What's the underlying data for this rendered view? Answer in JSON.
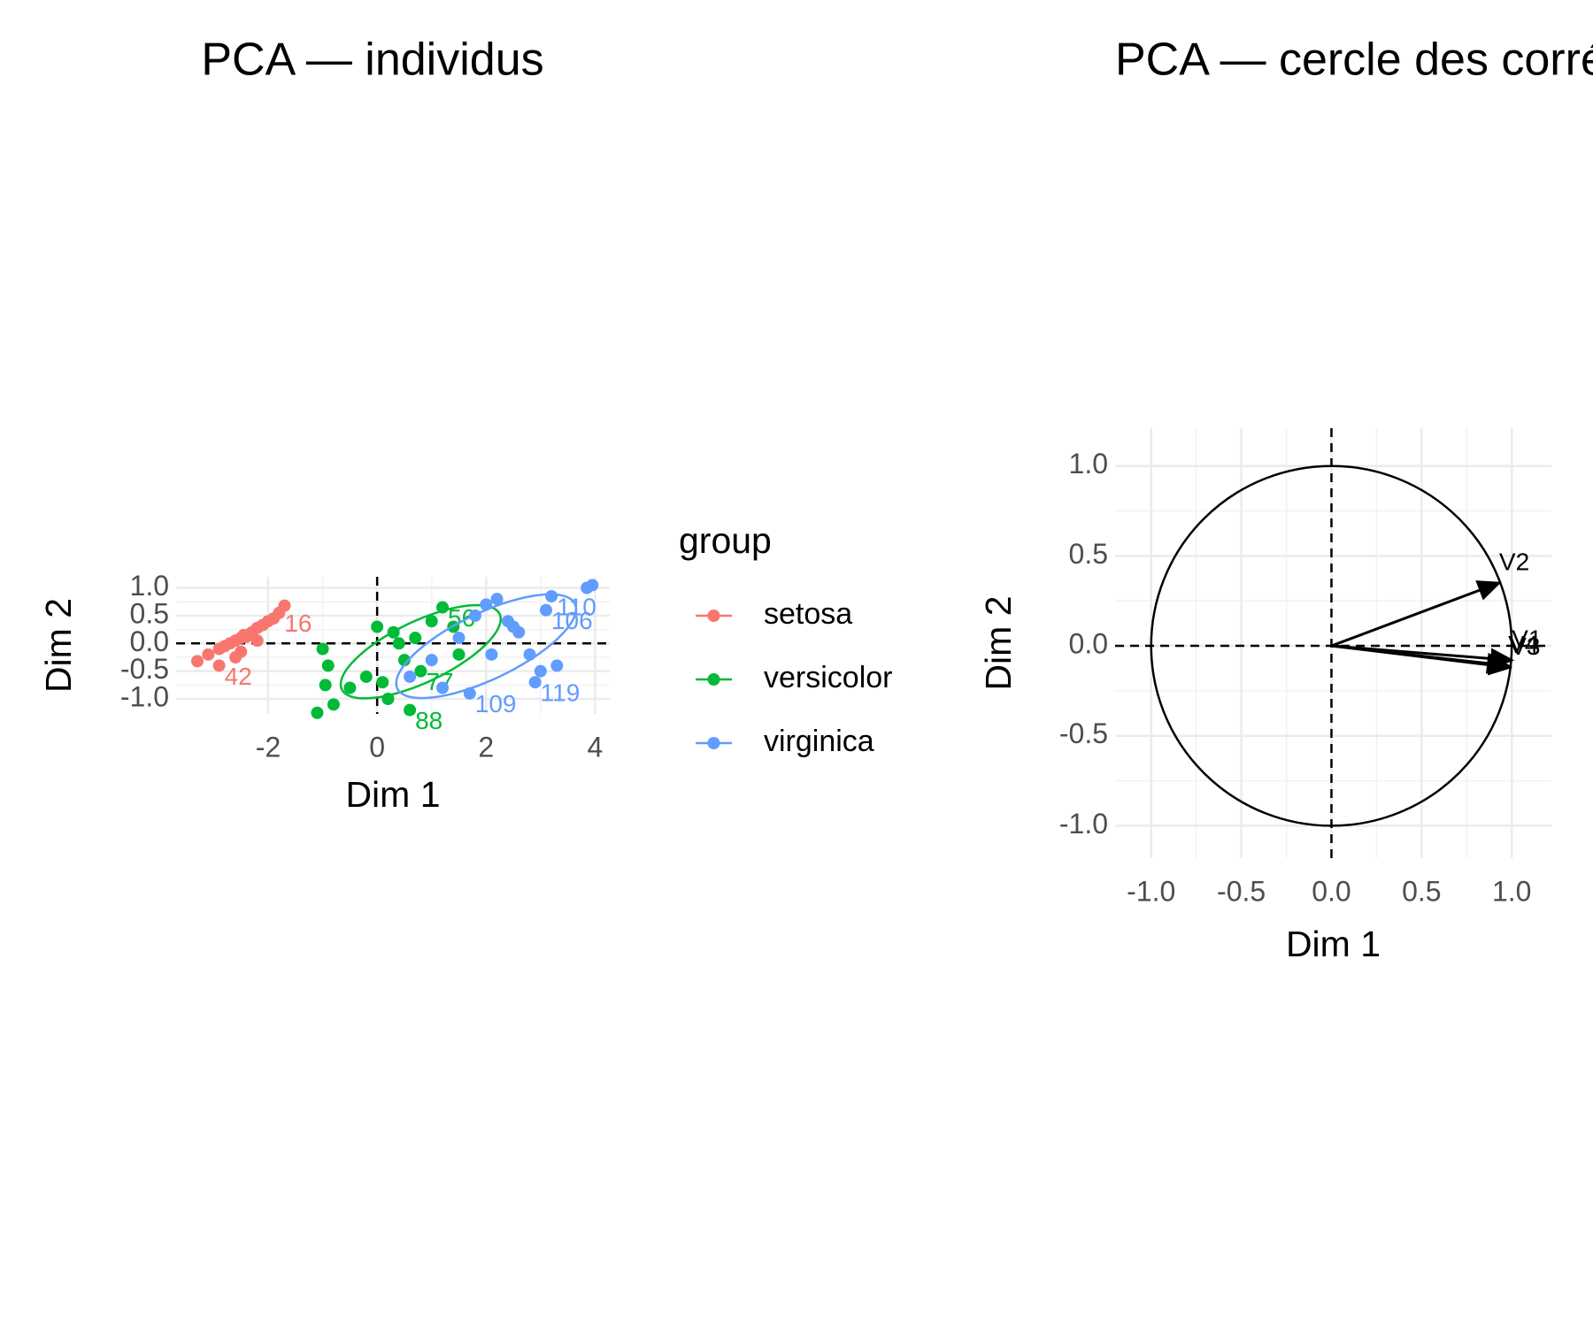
{
  "chart_data": [
    {
      "type": "scatter",
      "title": "PCA — individus",
      "x_label": "Dim 1",
      "y_label": "Dim 2",
      "xlim": [
        -3.69,
        4.27
      ],
      "ylim": [
        -1.27,
        1.2
      ],
      "xticks": [
        -2,
        0,
        2,
        4
      ],
      "yticks": [
        {
          "value": 1.0,
          "label": "1.0"
        },
        {
          "value": 0.5,
          "label": "0.5"
        },
        {
          "value": 0,
          "label": "0.0"
        },
        {
          "value": -0.5,
          "label": "-0.5"
        },
        {
          "value": -1.0,
          "label": "-1.0"
        }
      ],
      "grid": true,
      "ref_lines": {
        "x": 0,
        "y": 0
      },
      "legend_title": "group",
      "legend_position": "right",
      "series": [
        {
          "name": "setosa",
          "color": "#F8766D",
          "x": [
            -3.3,
            -3.1,
            -2.9,
            -2.8,
            -2.7,
            -2.6,
            -2.5,
            -2.45,
            -2.4,
            -2.3,
            -2.2,
            -2.1,
            -2.0,
            -1.9,
            -1.8,
            -1.7,
            -2.5,
            -2.9,
            -2.2,
            -2.6
          ],
          "y": [
            -0.32,
            -0.2,
            -0.1,
            -0.05,
            0.0,
            0.05,
            0.1,
            0.15,
            0.12,
            0.2,
            0.28,
            0.33,
            0.4,
            0.45,
            0.55,
            0.68,
            -0.15,
            -0.4,
            0.05,
            -0.25
          ],
          "labels": [
            null,
            null,
            null,
            null,
            null,
            null,
            null,
            null,
            null,
            null,
            null,
            null,
            null,
            null,
            "16",
            null,
            null,
            "42",
            null,
            null
          ]
        },
        {
          "name": "versicolor",
          "color": "#00BA38",
          "x": [
            -1.0,
            -0.9,
            -0.95,
            -0.5,
            -0.2,
            0.0,
            0.3,
            0.5,
            0.7,
            1.0,
            1.2,
            1.4,
            0.2,
            0.8,
            -0.8,
            0.1,
            0.6,
            1.5,
            -1.1,
            0.4
          ],
          "y": [
            -0.1,
            -0.4,
            -0.75,
            -0.8,
            -0.6,
            0.3,
            0.2,
            -0.3,
            0.1,
            0.4,
            0.65,
            0.3,
            -1.0,
            -0.5,
            -1.1,
            -0.7,
            -1.2,
            -0.2,
            -1.25,
            0.0
          ],
          "labels": [
            null,
            null,
            null,
            null,
            null,
            null,
            null,
            null,
            null,
            null,
            "56",
            null,
            null,
            "77",
            null,
            null,
            "88",
            null,
            null,
            null
          ],
          "ellipse": {
            "center": [
              0.8,
              -0.15
            ],
            "radii": [
              1.6,
              0.55
            ],
            "angle": 25
          }
        },
        {
          "name": "virginica",
          "color": "#619CFF",
          "x": [
            0.6,
            1.0,
            1.5,
            1.8,
            2.0,
            2.2,
            2.4,
            2.6,
            2.8,
            3.0,
            3.2,
            3.3,
            3.85,
            3.95,
            1.2,
            2.1,
            2.9,
            3.1,
            1.7,
            2.5
          ],
          "y": [
            -0.6,
            -0.3,
            0.1,
            0.5,
            0.7,
            0.8,
            0.4,
            0.2,
            -0.2,
            -0.5,
            0.85,
            -0.4,
            1.0,
            1.05,
            -0.8,
            -0.2,
            -0.7,
            0.6,
            -0.9,
            0.3
          ],
          "labels": [
            null,
            null,
            null,
            null,
            null,
            null,
            null,
            null,
            null,
            null,
            "110",
            null,
            null,
            null,
            null,
            null,
            "119",
            "106",
            "109",
            null
          ],
          "ellipse": {
            "center": [
              2.0,
              -0.05
            ],
            "radii": [
              1.8,
              0.6
            ],
            "angle": 25
          }
        }
      ]
    },
    {
      "type": "vector",
      "title": "PCA — cercle des corrélations",
      "x_label": "Dim 1",
      "y_label": "Dim 2",
      "xlim": [
        -1.2,
        1.22
      ],
      "ylim": [
        -1.18,
        1.21
      ],
      "xticks": [
        {
          "value": -1.0,
          "label": "-1.0"
        },
        {
          "value": -0.5,
          "label": "-0.5"
        },
        {
          "value": 0,
          "label": "0.0"
        },
        {
          "value": 0.5,
          "label": "0.5"
        },
        {
          "value": 1.0,
          "label": "1.0"
        }
      ],
      "yticks": [
        {
          "value": 1.0,
          "label": "1.0"
        },
        {
          "value": 0.5,
          "label": "0.5"
        },
        {
          "value": 0,
          "label": "0.0"
        },
        {
          "value": -0.5,
          "label": "-0.5"
        },
        {
          "value": -1.0,
          "label": "-1.0"
        }
      ],
      "grid": true,
      "ref_lines": {
        "x": 0,
        "y": 0
      },
      "circle_radius": 1,
      "variables": [
        {
          "name": "V1",
          "x": 1.0,
          "y": -0.08
        },
        {
          "name": "V2",
          "x": 0.93,
          "y": 0.35
        },
        {
          "name": "V3",
          "x": 0.99,
          "y": -0.12
        },
        {
          "name": "V4",
          "x": 0.98,
          "y": -0.11
        }
      ]
    }
  ]
}
